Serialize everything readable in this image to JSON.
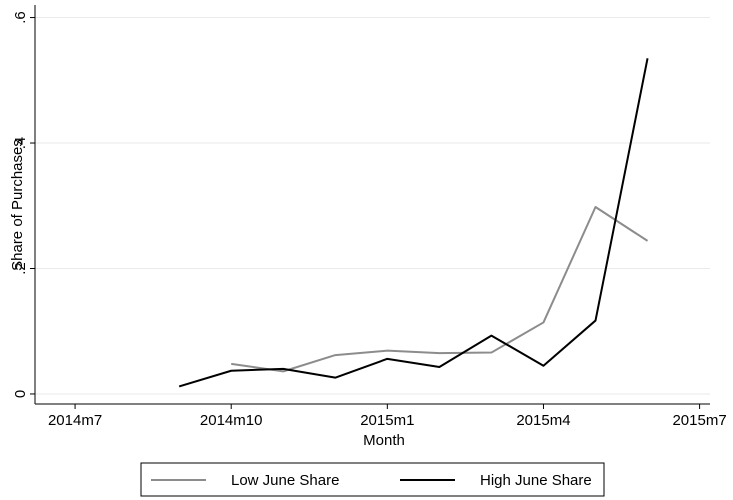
{
  "chart_data": {
    "type": "line",
    "x_label": "Month",
    "y_label": "Share of Purchases",
    "x": [
      656,
      657,
      658,
      659,
      660,
      661,
      662,
      663,
      664,
      665
    ],
    "series": [
      {
        "name": "Low June Share",
        "color": "#8c8c8c",
        "values": [
          null,
          0.048,
          0.036,
          0.062,
          0.069,
          0.065,
          0.066,
          0.114,
          0.298,
          0.244
        ]
      },
      {
        "name": "High June Share",
        "color": "#000000",
        "values": [
          0.012,
          0.037,
          0.04,
          0.026,
          0.056,
          0.043,
          0.093,
          0.045,
          0.117,
          0.535
        ]
      }
    ],
    "xlim": [
      653.23,
      666.2
    ],
    "xticks": [
      {
        "value": 654,
        "label": "2014m7"
      },
      {
        "value": 657,
        "label": "2014m10"
      },
      {
        "value": 660,
        "label": "2015m1"
      },
      {
        "value": 663,
        "label": "2015m4"
      },
      {
        "value": 666,
        "label": "2015m7"
      }
    ],
    "ylim": [
      -0.016,
      0.62
    ],
    "yticks": [
      0,
      {
        "value": 0.2,
        "label": ".2"
      },
      {
        "value": 0.4,
        "label": ".4"
      },
      {
        "value": 0.6,
        "label": ".6"
      }
    ],
    "grid": true,
    "legend": "bottom"
  }
}
